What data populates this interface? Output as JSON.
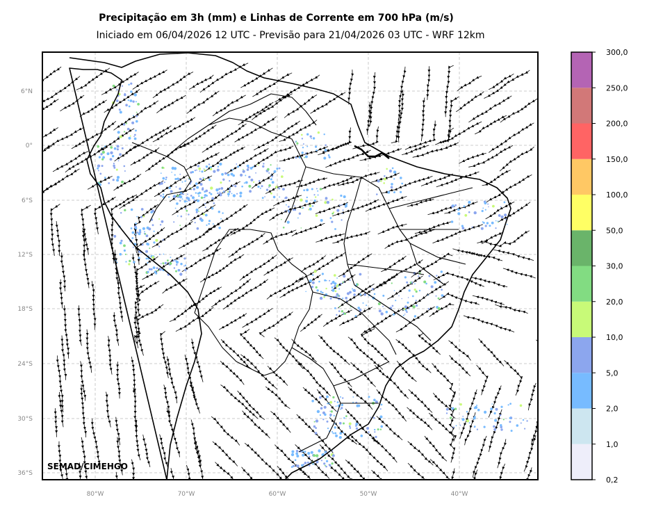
{
  "title": "Precipitação em 3h (mm) e Linhas de Corrente em 700 hPa (m/s)",
  "subtitle": "Iniciado em 06/04/2026 12 UTC - Previsão para 21/04/2026 03 UTC - WRF 12km",
  "credit": "SEMAD/CIMEHGO",
  "lat_labels": [
    "6°N",
    "0°",
    "6°S",
    "12°S",
    "18°S",
    "24°S",
    "30°S",
    "36°S"
  ],
  "lon_labels": [
    "80°W",
    "70°W",
    "60°W",
    "50°W",
    "40°W"
  ],
  "colorbar": {
    "levels": [
      "0,2",
      "1,0",
      "2,0",
      "5,0",
      "10,0",
      "20,0",
      "30,0",
      "50,0",
      "100,0",
      "150,0",
      "200,0",
      "250,0",
      "300,0"
    ],
    "colors": [
      "#eeeefa",
      "#cde6f0",
      "#77bbff",
      "#8ca6ee",
      "#c8fa78",
      "#82dc82",
      "#6ab46a",
      "#ffff64",
      "#ffc864",
      "#ff6464",
      "#d27878",
      "#b464b4"
    ]
  }
}
